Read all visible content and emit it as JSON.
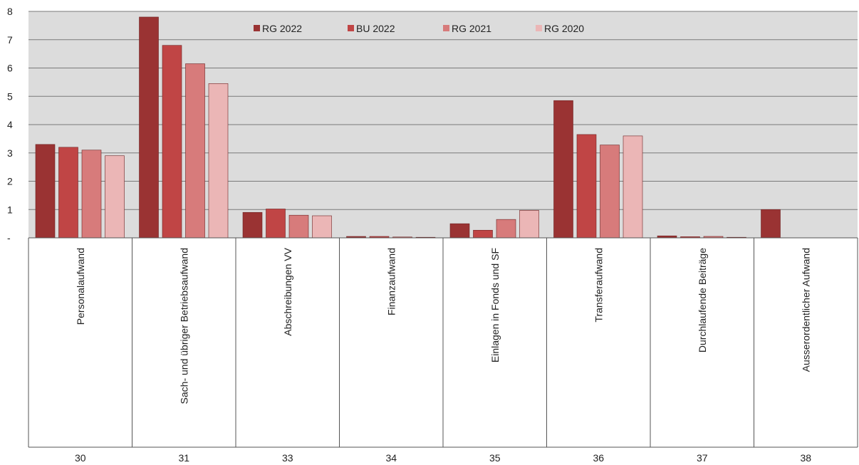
{
  "chart_data": {
    "type": "bar",
    "categories": [
      "Personalaufwand",
      "Sach- und übriger Betriebsaufwand",
      "Abschreibungen VV",
      "Finanzaufwand",
      "Einlagen in Fonds und SF",
      "Transferaufwand",
      "Durchlaufende Beiträge",
      "Ausserordentlicher Aufwand"
    ],
    "codes": [
      "30",
      "31",
      "33",
      "34",
      "35",
      "36",
      "37",
      "38"
    ],
    "series": [
      {
        "name": "RG 2022",
        "color": "#9a3333",
        "values": [
          3.3,
          7.8,
          0.9,
          0.05,
          0.5,
          4.85,
          0.07,
          1.0
        ]
      },
      {
        "name": "BU 2022",
        "color": "#c04545",
        "values": [
          3.2,
          6.8,
          1.02,
          0.05,
          0.27,
          3.65,
          0.04,
          0.0
        ]
      },
      {
        "name": "RG 2021",
        "color": "#d77b7b",
        "values": [
          3.1,
          6.15,
          0.8,
          0.03,
          0.65,
          3.28,
          0.05,
          0.0
        ]
      },
      {
        "name": "RG 2020",
        "color": "#ebb6b6",
        "values": [
          2.9,
          5.45,
          0.78,
          0.02,
          0.97,
          3.6,
          0.02,
          0.0
        ]
      }
    ],
    "y_ticks": [
      "-",
      "1",
      "2",
      "3",
      "4",
      "5",
      "6",
      "7",
      "8"
    ],
    "ylim": [
      0,
      8
    ],
    "grid": true,
    "legend_position": "top-center"
  }
}
